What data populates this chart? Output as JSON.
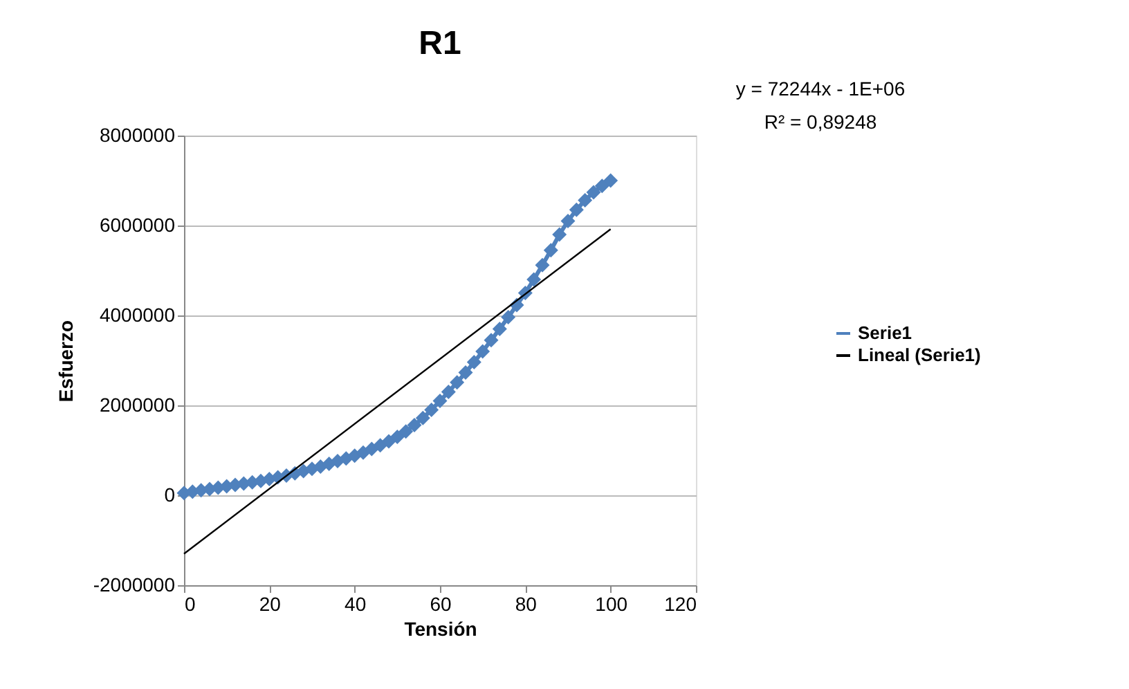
{
  "chart_data": {
    "type": "line",
    "title": "R1",
    "xlabel": "Tensión",
    "ylabel": "Esfuerzo",
    "annotations": [
      "y = 72244x - 1E+06",
      "R² = 0,89248"
    ],
    "xlim": [
      0,
      120
    ],
    "xticks": [
      0,
      20,
      40,
      60,
      80,
      100,
      120
    ],
    "ylim": [
      -2000000,
      8000000
    ],
    "yticks": [
      -2000000,
      0,
      2000000,
      4000000,
      6000000,
      8000000
    ],
    "grid": "y",
    "legend": "right",
    "series": [
      {
        "name": "Serie1",
        "color": "#4f81bd",
        "marker": "diamond",
        "x": [
          0,
          2,
          4,
          6,
          8,
          10,
          12,
          14,
          16,
          18,
          20,
          22,
          24,
          26,
          28,
          30,
          32,
          34,
          36,
          38,
          40,
          42,
          44,
          46,
          48,
          50,
          52,
          54,
          56,
          58,
          60,
          62,
          64,
          66,
          68,
          70,
          72,
          74,
          76,
          78,
          80,
          82,
          84,
          86,
          88,
          90,
          92,
          94,
          96,
          98,
          100
        ],
        "values": [
          50000,
          80000,
          110000,
          140000,
          170000,
          200000,
          230000,
          260000,
          290000,
          320000,
          360000,
          400000,
          440000,
          490000,
          540000,
          590000,
          640000,
          700000,
          760000,
          820000,
          880000,
          950000,
          1030000,
          1110000,
          1200000,
          1300000,
          1420000,
          1560000,
          1720000,
          1900000,
          2100000,
          2300000,
          2510000,
          2730000,
          2960000,
          3200000,
          3450000,
          3700000,
          3960000,
          4230000,
          4500000,
          4800000,
          5120000,
          5450000,
          5800000,
          6100000,
          6350000,
          6560000,
          6740000,
          6880000,
          7000000
        ]
      },
      {
        "name": "Lineal (Serie1)",
        "color": "#000000",
        "marker": "none",
        "x": [
          0,
          100
        ],
        "values": [
          -1300000,
          5920000
        ]
      }
    ]
  }
}
